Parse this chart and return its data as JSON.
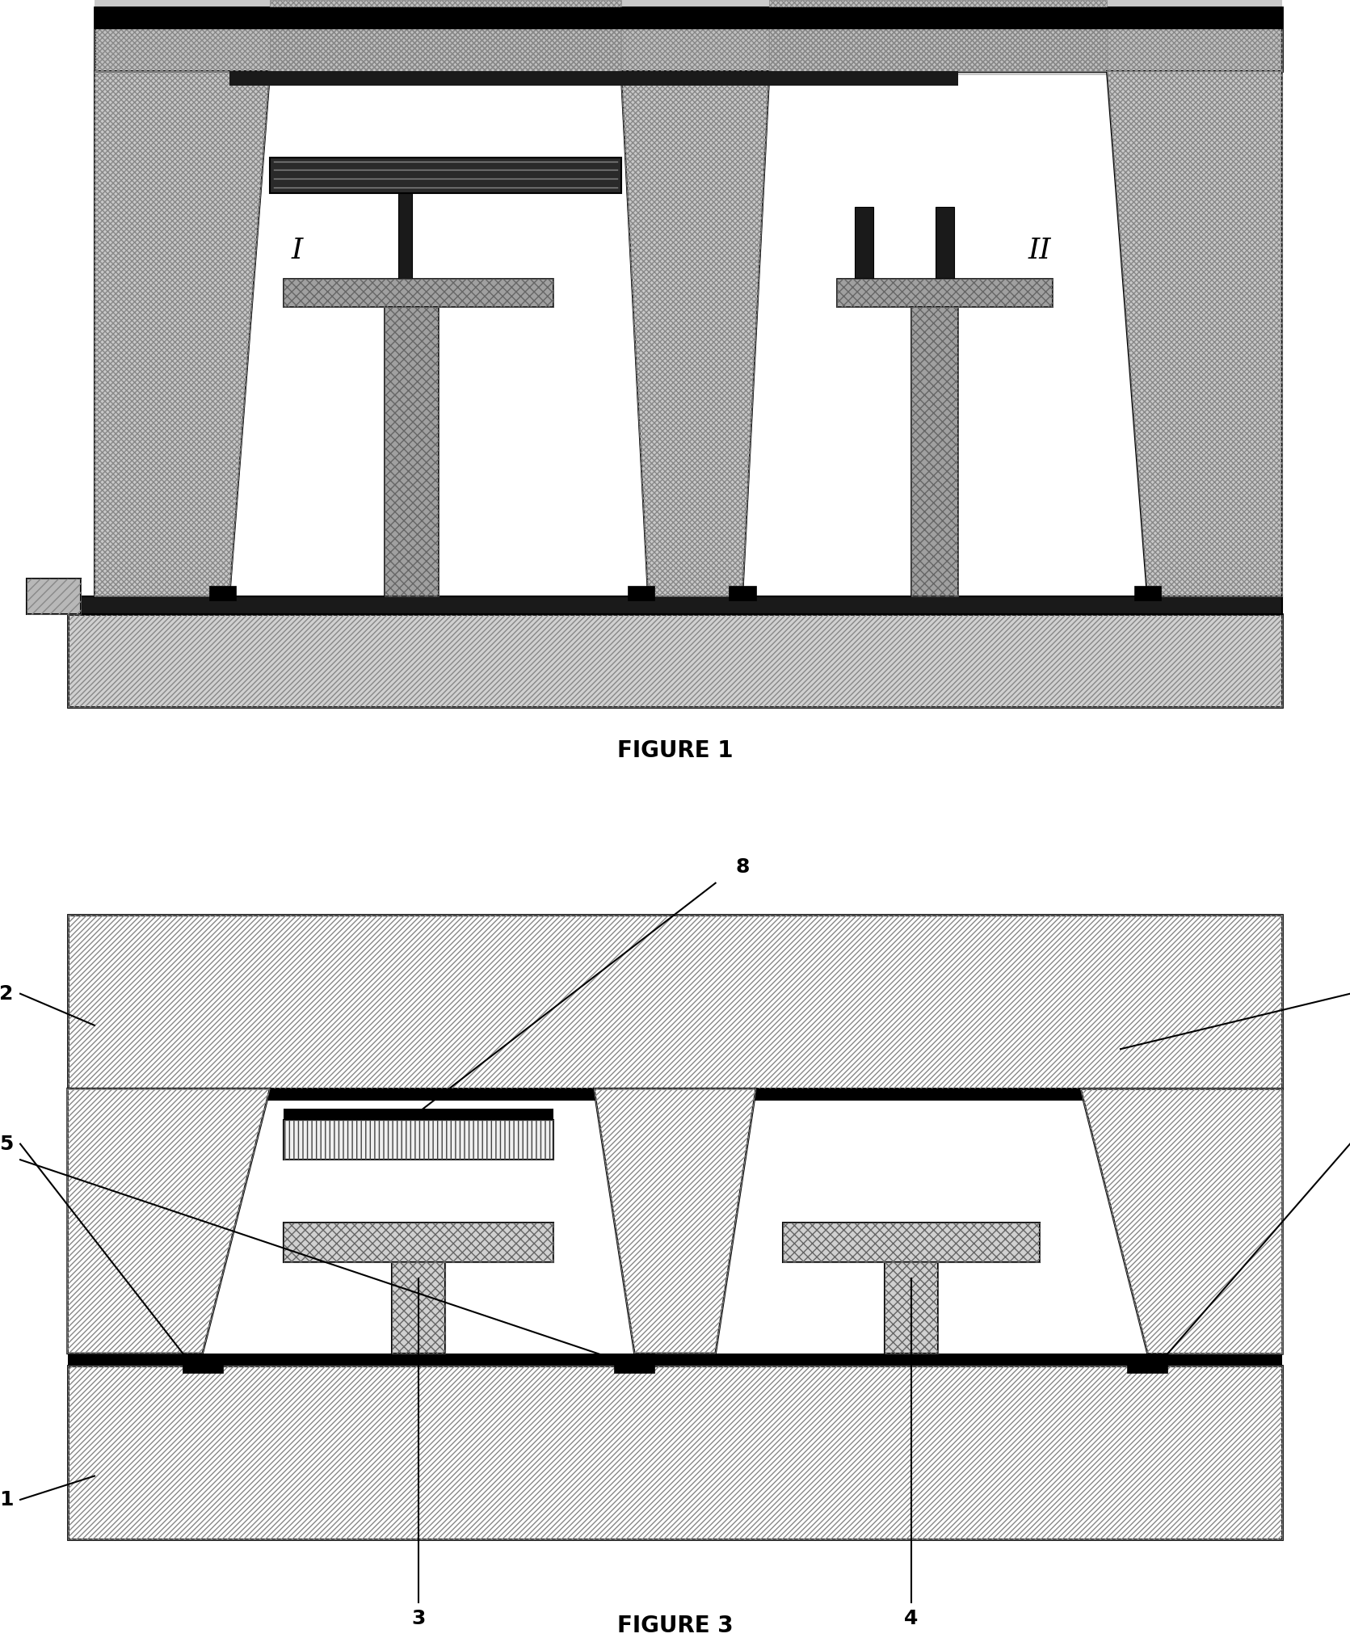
{
  "fig1_label": "FIGURE 1",
  "fig3_label": "FIGURE 3",
  "background_color": "#ffffff",
  "label_fontsize": 18,
  "figure_label_fontsize": 20,
  "roman_fontsize": 26
}
